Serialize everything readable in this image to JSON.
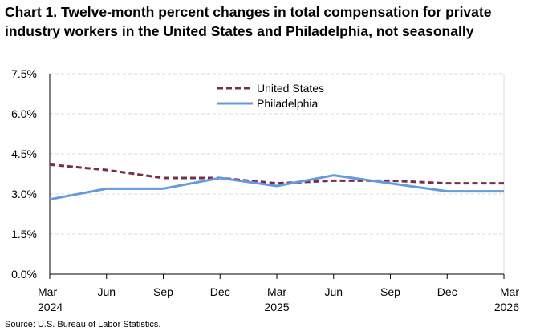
{
  "title_lines": [
    "Chart 1. Twelve-month percent changes in total compensation for private",
    "industry workers in the United States and Philadelphia, not seasonally"
  ],
  "source": "Source: U.S. Bureau of Labor Statistics.",
  "colors": {
    "united_states": "#772e4e",
    "philadelphia": "#6699dd",
    "grid": "#d9d9d9",
    "axis": "#000000"
  },
  "chart_data": {
    "type": "line",
    "title": "Chart 1. Twelve-month percent changes in total compensation for private industry workers in the United States and Philadelphia, not seasonally",
    "x": [
      "Mar 2024",
      "Jun 2024",
      "Sep 2024",
      "Dec 2024",
      "Mar 2025",
      "Jun 2025",
      "Sep 2025",
      "Dec 2025",
      "Mar 2026"
    ],
    "x_tick_labels": [
      [
        "Mar",
        "2024"
      ],
      [
        "Jun",
        ""
      ],
      [
        "Sep",
        ""
      ],
      [
        "Dec",
        ""
      ],
      [
        "Mar",
        "2025"
      ],
      [
        "Jun",
        ""
      ],
      [
        "Sep",
        ""
      ],
      [
        "Dec",
        ""
      ],
      [
        "Mar",
        "2026"
      ]
    ],
    "y_ticks": [
      0.0,
      1.5,
      3.0,
      4.5,
      6.0,
      7.5
    ],
    "y_tick_labels": [
      "0.0%",
      "1.5%",
      "3.0%",
      "4.5%",
      "6.0%",
      "7.5%"
    ],
    "ylim": [
      0,
      7.5
    ],
    "grid": true,
    "legend_position": "top-center",
    "series": [
      {
        "name": "United States",
        "style": "dashed",
        "values": [
          4.1,
          3.9,
          3.6,
          3.6,
          3.4,
          3.5,
          3.5,
          3.4,
          3.4
        ]
      },
      {
        "name": "Philadelphia",
        "style": "solid",
        "values": [
          2.8,
          3.2,
          3.2,
          3.6,
          3.3,
          3.7,
          3.4,
          3.1,
          3.1
        ]
      }
    ]
  }
}
